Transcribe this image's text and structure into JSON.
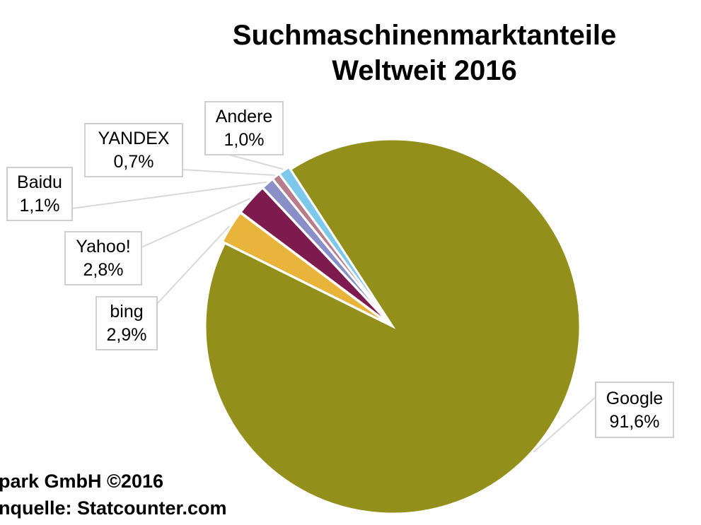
{
  "chart_data": {
    "type": "pie",
    "title": "Suchmaschinenmarktanteile",
    "subtitle": "Weltweit 2016",
    "slices": [
      {
        "name": "Google",
        "value": 91.6,
        "label": "91,6%",
        "color": "#938F1B"
      },
      {
        "name": "bing",
        "value": 2.9,
        "label": "2,9%",
        "color": "#E8B43C"
      },
      {
        "name": "Yahoo!",
        "value": 2.8,
        "label": "2,8%",
        "color": "#7E1B4E"
      },
      {
        "name": "Baidu",
        "value": 1.1,
        "label": "1,1%",
        "color": "#8A8FC8"
      },
      {
        "name": "YANDEX",
        "value": 0.7,
        "label": "0,7%",
        "color": "#B87C8C"
      },
      {
        "name": "Andere",
        "value": 1.0,
        "label": "1,0%",
        "color": "#7EC8EC"
      }
    ]
  },
  "footer": {
    "line1": "park GmbH ©2016",
    "line2": "nquelle: Statcounter.com"
  }
}
